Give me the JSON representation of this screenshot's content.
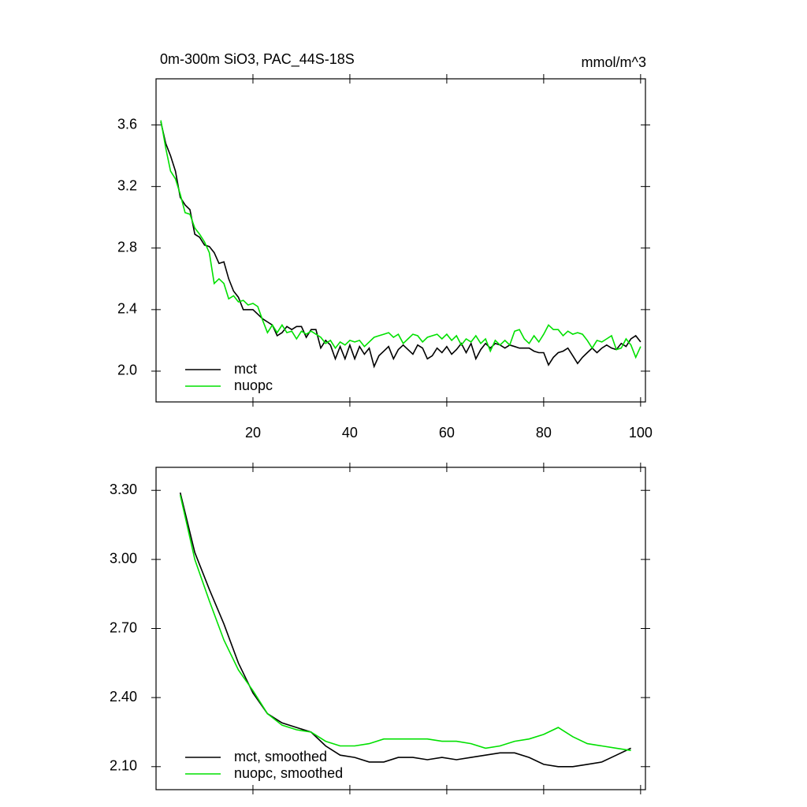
{
  "chart_data": [
    {
      "type": "line",
      "title": "0m-300m SiO3, PAC_44S-18S",
      "units": "mmol/m^3",
      "x": [
        1,
        2,
        3,
        4,
        5,
        6,
        7,
        8,
        9,
        10,
        11,
        12,
        13,
        14,
        15,
        16,
        17,
        18,
        19,
        20,
        21,
        22,
        23,
        24,
        25,
        26,
        27,
        28,
        29,
        30,
        31,
        32,
        33,
        34,
        35,
        36,
        37,
        38,
        39,
        40,
        41,
        42,
        43,
        44,
        45,
        46,
        47,
        48,
        49,
        50,
        51,
        52,
        53,
        54,
        55,
        56,
        57,
        58,
        59,
        60,
        61,
        62,
        63,
        64,
        65,
        66,
        67,
        68,
        69,
        70,
        71,
        72,
        73,
        74,
        75,
        76,
        77,
        78,
        79,
        80,
        81,
        82,
        83,
        84,
        85,
        86,
        87,
        88,
        89,
        90,
        91,
        92,
        93,
        94,
        95,
        96,
        97,
        98,
        99,
        100
      ],
      "series": [
        {
          "name": "mct",
          "color": "#000000",
          "values": [
            3.62,
            3.48,
            3.4,
            3.3,
            3.13,
            3.08,
            3.05,
            2.89,
            2.87,
            2.82,
            2.81,
            2.77,
            2.7,
            2.71,
            2.6,
            2.52,
            2.48,
            2.4,
            2.4,
            2.4,
            2.37,
            2.34,
            2.32,
            2.3,
            2.23,
            2.25,
            2.29,
            2.27,
            2.29,
            2.29,
            2.22,
            2.27,
            2.27,
            2.15,
            2.2,
            2.17,
            2.08,
            2.16,
            2.08,
            2.17,
            2.08,
            2.16,
            2.11,
            2.15,
            2.03,
            2.1,
            2.13,
            2.16,
            2.08,
            2.14,
            2.17,
            2.14,
            2.11,
            2.17,
            2.15,
            2.08,
            2.1,
            2.15,
            2.12,
            2.16,
            2.11,
            2.14,
            2.18,
            2.12,
            2.18,
            2.08,
            2.14,
            2.18,
            2.15,
            2.18,
            2.17,
            2.15,
            2.17,
            2.16,
            2.15,
            2.15,
            2.15,
            2.13,
            2.12,
            2.12,
            2.04,
            2.09,
            2.12,
            2.13,
            2.15,
            2.1,
            2.05,
            2.09,
            2.12,
            2.15,
            2.12,
            2.15,
            2.17,
            2.15,
            2.14,
            2.18,
            2.16,
            2.21,
            2.23,
            2.19
          ]
        },
        {
          "name": "nuopc",
          "color": "#00e000",
          "values": [
            3.63,
            3.45,
            3.3,
            3.25,
            3.15,
            3.03,
            3.02,
            2.93,
            2.89,
            2.84,
            2.77,
            2.57,
            2.6,
            2.57,
            2.47,
            2.49,
            2.45,
            2.46,
            2.43,
            2.44,
            2.42,
            2.33,
            2.25,
            2.3,
            2.25,
            2.3,
            2.25,
            2.26,
            2.21,
            2.26,
            2.24,
            2.26,
            2.24,
            2.22,
            2.18,
            2.2,
            2.15,
            2.19,
            2.17,
            2.2,
            2.19,
            2.2,
            2.16,
            2.19,
            2.22,
            2.23,
            2.24,
            2.25,
            2.22,
            2.24,
            2.18,
            2.21,
            2.24,
            2.23,
            2.19,
            2.22,
            2.23,
            2.24,
            2.21,
            2.24,
            2.2,
            2.23,
            2.17,
            2.21,
            2.19,
            2.23,
            2.18,
            2.21,
            2.13,
            2.2,
            2.17,
            2.2,
            2.17,
            2.26,
            2.27,
            2.21,
            2.18,
            2.23,
            2.19,
            2.24,
            2.3,
            2.27,
            2.27,
            2.23,
            2.26,
            2.24,
            2.25,
            2.24,
            2.2,
            2.15,
            2.2,
            2.19,
            2.21,
            2.23,
            2.14,
            2.15,
            2.21,
            2.17,
            2.09,
            2.16
          ]
        }
      ],
      "xlim": [
        0,
        101
      ],
      "xticks": [
        20,
        40,
        60,
        80,
        100
      ],
      "ylim": [
        1.8,
        3.9
      ],
      "yticks": [
        {
          "value": 2,
          "label": "2.0"
        },
        2.4,
        2.8,
        3.2,
        3.6
      ]
    },
    {
      "type": "line",
      "x": [
        5,
        8,
        11,
        14,
        17,
        20,
        23,
        26,
        29,
        32,
        35,
        38,
        41,
        44,
        47,
        50,
        53,
        56,
        59,
        62,
        65,
        68,
        71,
        74,
        77,
        80,
        83,
        86,
        89,
        92,
        95,
        98
      ],
      "series": [
        {
          "name": "mct, smoothed",
          "color": "#000000",
          "values": [
            3.29,
            3.03,
            2.87,
            2.72,
            2.55,
            2.42,
            2.33,
            2.29,
            2.27,
            2.25,
            2.19,
            2.15,
            2.14,
            2.12,
            2.12,
            2.14,
            2.14,
            2.13,
            2.14,
            2.13,
            2.14,
            2.15,
            2.16,
            2.16,
            2.14,
            2.11,
            2.1,
            2.1,
            2.11,
            2.12,
            2.15,
            2.18
          ]
        },
        {
          "name": "nuopc, smoothed",
          "color": "#00e000",
          "values": [
            3.28,
            3.0,
            2.82,
            2.65,
            2.52,
            2.43,
            2.33,
            2.28,
            2.26,
            2.25,
            2.21,
            2.19,
            2.19,
            2.2,
            2.22,
            2.22,
            2.22,
            2.22,
            2.21,
            2.21,
            2.2,
            2.18,
            2.19,
            2.21,
            2.22,
            2.24,
            2.27,
            2.23,
            2.2,
            2.19,
            2.18,
            2.17
          ]
        }
      ],
      "xlim": [
        0,
        101
      ],
      "xticks": [
        20,
        40,
        60,
        80,
        100
      ],
      "ylim": [
        2.0,
        3.4
      ],
      "yticks": [
        {
          "value": 2.1,
          "label": "2.10"
        },
        {
          "value": 2.4,
          "label": "2.40"
        },
        {
          "value": 2.7,
          "label": "2.70"
        },
        {
          "value": 3,
          "label": "3.00"
        },
        {
          "value": 3.3,
          "label": "3.30"
        }
      ]
    }
  ]
}
